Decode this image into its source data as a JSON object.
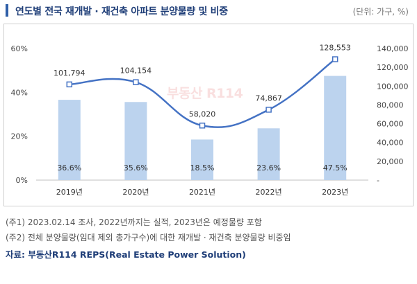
{
  "header": {
    "title": "연도별 전국 재개발 · 재건축 아파트 분양물량 및 비중",
    "unit": "(단위: 가구, %)"
  },
  "chart_data": {
    "type": "bar",
    "categories": [
      "2019년",
      "2020년",
      "2021년",
      "2022년",
      "2023년"
    ],
    "series": [
      {
        "name": "재개발·재건축 분양물량 비중",
        "kind": "bar",
        "axis": "left",
        "values": [
          36.6,
          35.6,
          18.5,
          23.6,
          47.5
        ],
        "labels": [
          "36.6%",
          "35.6%",
          "18.5%",
          "23.6%",
          "47.5%"
        ],
        "color": "#bcd3ee"
      },
      {
        "name": "재개발·재건축 분양물량",
        "kind": "line",
        "axis": "right",
        "values": [
          101794,
          104154,
          58020,
          74867,
          128553
        ],
        "labels": [
          "101,794",
          "104,154",
          "58,020",
          "74,867",
          "128,553"
        ],
        "color": "#4472c4"
      }
    ],
    "left_axis": {
      "min": 0,
      "max": 60,
      "ticks": [
        0,
        20,
        40,
        60
      ],
      "tick_labels": [
        "0%",
        "20%",
        "40%",
        "60%"
      ]
    },
    "right_axis": {
      "min": 0,
      "max": 140000,
      "ticks": [
        0,
        20000,
        40000,
        60000,
        80000,
        100000,
        120000,
        140000
      ],
      "tick_labels": [
        "-",
        "20,000",
        "40,000",
        "60,000",
        "80,000",
        "100,000",
        "120,000",
        "140,000"
      ]
    },
    "grid": false
  },
  "notes": [
    "(주1) 2023.02.14 조사, 2022년까지는 실적, 2023년은 예정물량 포함",
    "(주2) 전체 분양물량(임대 제외 총가구수)에 대한 재개발 · 재건축 분양물량 비중임"
  ],
  "source": "자료: 부동산R114 REPS(Real Estate Power Solution)",
  "watermark": "부동산 R114"
}
